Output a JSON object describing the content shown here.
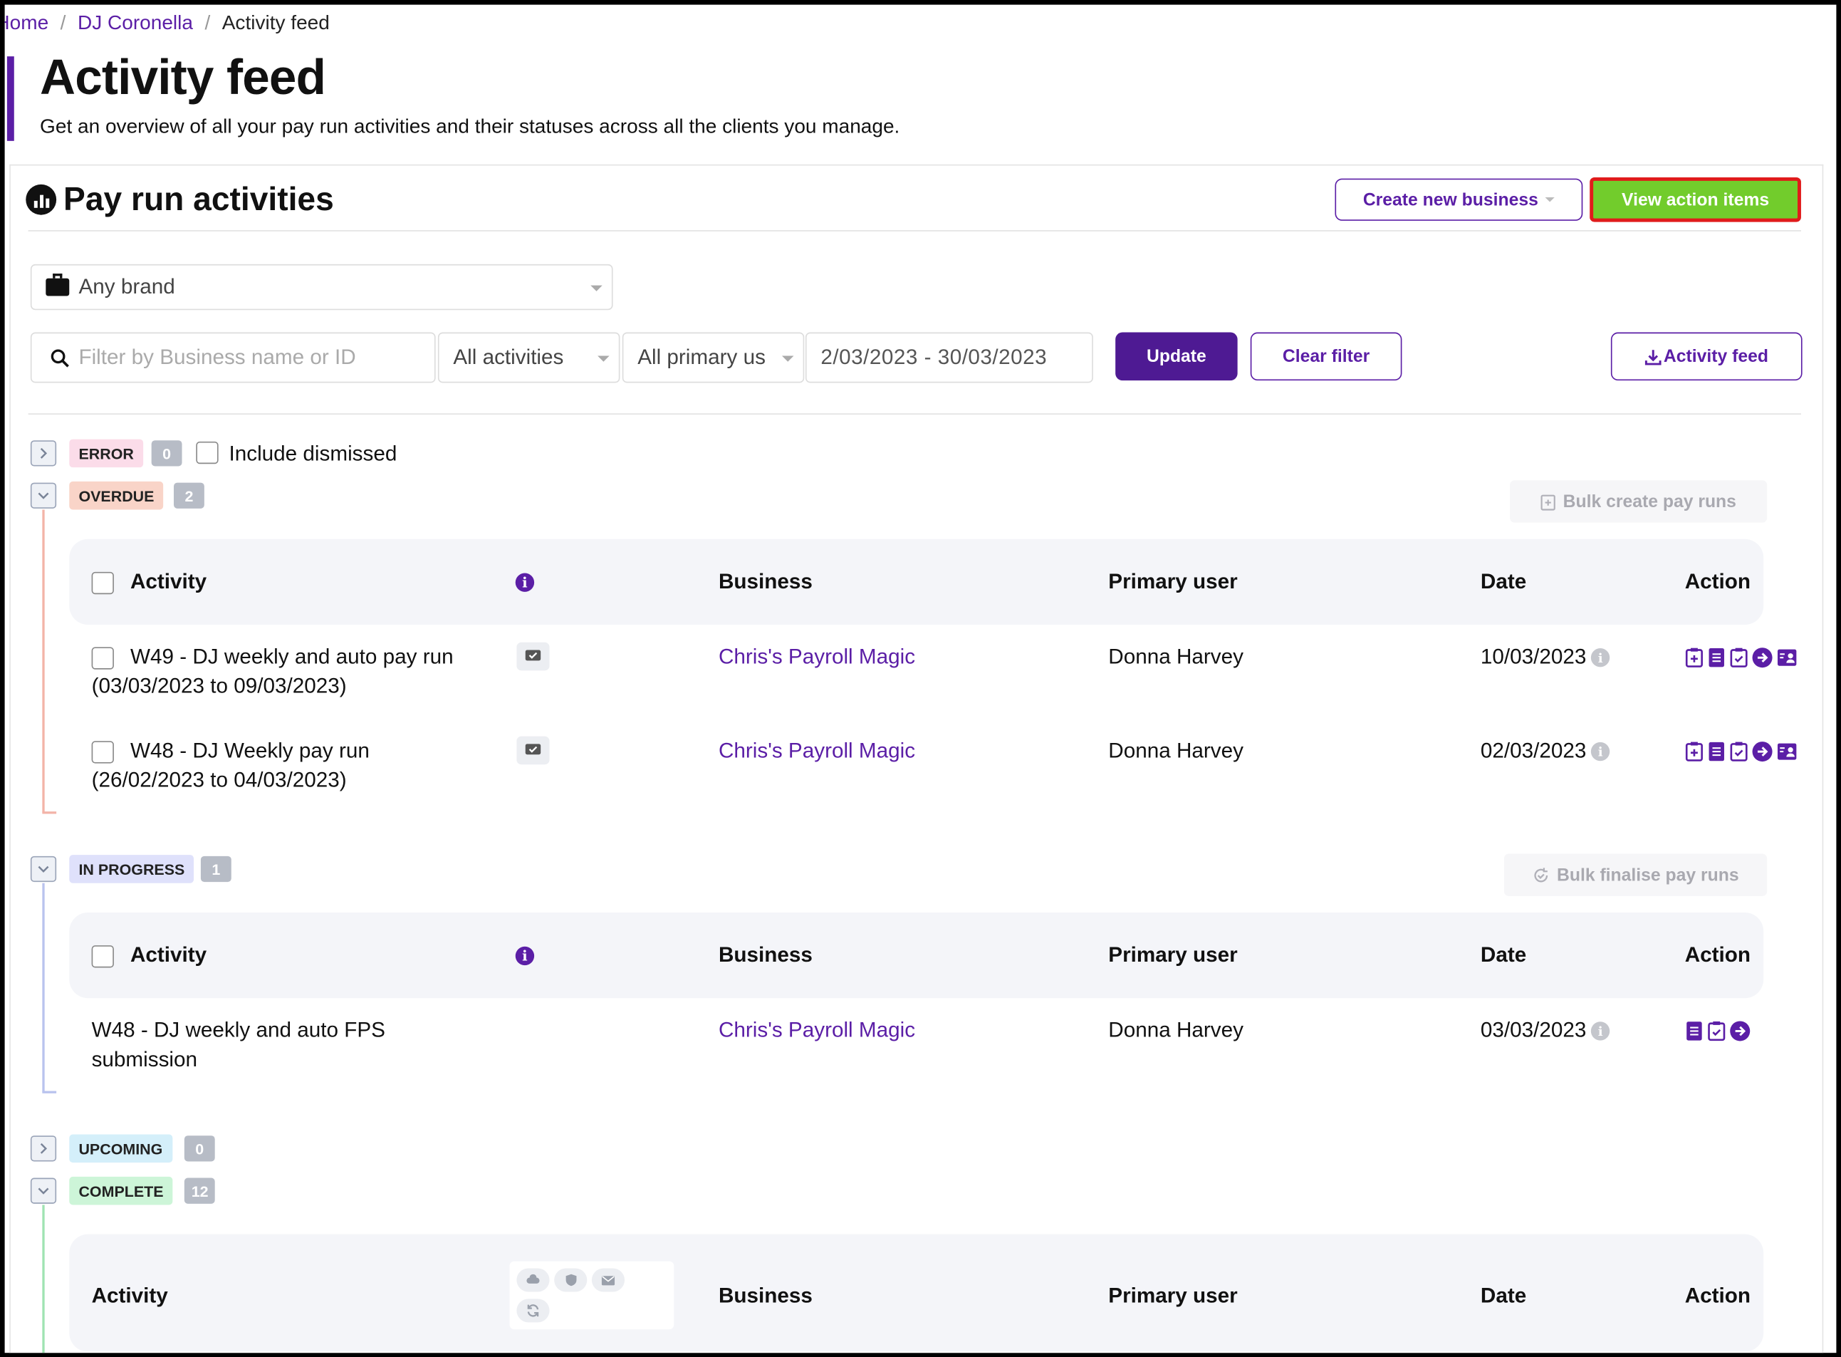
{
  "breadcrumb": {
    "home": "Home",
    "client": "DJ Coronella",
    "current": "Activity feed"
  },
  "page": {
    "title": "Activity feed",
    "subtitle": "Get an overview of all your pay run activities and their statuses across all the clients you manage."
  },
  "card": {
    "title": "Pay run activities",
    "create_business": "Create new business",
    "view_action_items": "View action items"
  },
  "filters": {
    "brand": "Any brand",
    "search_placeholder": "Filter by Business name or ID",
    "activities": "All activities",
    "primary_user": "All primary us",
    "date_range": "2/03/2023 - 30/03/2023",
    "update": "Update",
    "clear": "Clear filter",
    "export": "Activity feed"
  },
  "groups": {
    "error": {
      "label": "ERROR",
      "count": "0",
      "include_dismissed": "Include dismissed"
    },
    "overdue": {
      "label": "OVERDUE",
      "count": "2",
      "bulk": "Bulk create pay runs"
    },
    "in_progress": {
      "label": "IN PROGRESS",
      "count": "1",
      "bulk": "Bulk finalise pay runs"
    },
    "upcoming": {
      "label": "UPCOMING",
      "count": "0"
    },
    "complete": {
      "label": "COMPLETE",
      "count": "12"
    }
  },
  "columns": {
    "activity": "Activity",
    "business": "Business",
    "primary_user": "Primary user",
    "date": "Date",
    "action": "Action"
  },
  "overdue_rows": [
    {
      "activity_l1": "W49 - DJ weekly and auto pay run",
      "activity_l2": "(03/03/2023 to 09/03/2023)",
      "business": "Chris's Payroll Magic",
      "user": "Donna Harvey",
      "date": "10/03/2023"
    },
    {
      "activity_l1": "W48 - DJ Weekly pay run",
      "activity_l2": "(26/02/2023 to 04/03/2023)",
      "business": "Chris's Payroll Magic",
      "user": "Donna Harvey",
      "date": "02/03/2023"
    }
  ],
  "in_progress_rows": [
    {
      "activity_l1": "W48 - DJ weekly and auto FPS",
      "activity_l2": "submission",
      "business": "Chris's Payroll Magic",
      "user": "Donna Harvey",
      "date": "03/03/2023"
    }
  ],
  "colors": {
    "accent": "#5b1ea6",
    "green_button": "#72cc2c",
    "highlight_border": "#e01b1b"
  }
}
